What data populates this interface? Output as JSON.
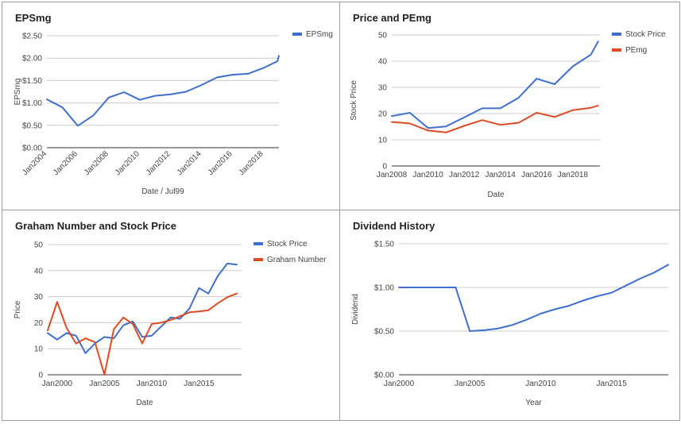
{
  "colors": {
    "blue": "#3f6fcd",
    "orange": "#dd4b25",
    "grid": "#cccccc",
    "axis": "#333333",
    "text": "#444444"
  },
  "chart_data": [
    {
      "type": "line",
      "title": "EPSmg",
      "xlabel": "Date / Jul99",
      "ylabel": "EPSmg",
      "x_ticks": [
        "Jan2004",
        "Jan2006",
        "Jan2008",
        "Jan2010",
        "Jan2012",
        "Jan2014",
        "Jan2016",
        "Jan2018"
      ],
      "x_range": [
        2004,
        2019
      ],
      "tick_labels_rotated": true,
      "y_ticks": [
        "$0.00",
        "$0.50",
        "$1.00",
        "$1.50",
        "$2.00",
        "$2.50"
      ],
      "ylim": [
        0,
        2.5
      ],
      "legend": "right",
      "series": [
        {
          "name": "EPSmg",
          "color": "blue",
          "points": [
            [
              2004,
              1.08
            ],
            [
              2005,
              0.9
            ],
            [
              2006,
              0.49
            ],
            [
              2007,
              0.72
            ],
            [
              2008,
              1.12
            ],
            [
              2009,
              1.24
            ],
            [
              2010,
              1.07
            ],
            [
              2011,
              1.16
            ],
            [
              2012,
              1.19
            ],
            [
              2013,
              1.25
            ],
            [
              2014,
              1.4
            ],
            [
              2015,
              1.57
            ],
            [
              2016,
              1.63
            ],
            [
              2017,
              1.65
            ],
            [
              2018,
              1.78
            ],
            [
              2018.9,
              1.93
            ],
            [
              2019,
              2.05
            ]
          ]
        }
      ]
    },
    {
      "type": "line",
      "title": "Price and PEmg",
      "xlabel": "Date",
      "ylabel": "Stock Price",
      "x_ticks": [
        "Jan2008",
        "Jan2010",
        "Jan2012",
        "Jan2014",
        "Jan2016",
        "Jan2018"
      ],
      "x_range": [
        2008,
        2019.5
      ],
      "y_ticks": [
        "0",
        "10",
        "20",
        "30",
        "40",
        "50"
      ],
      "ylim": [
        0,
        50
      ],
      "legend": "right",
      "series": [
        {
          "name": "Stock Price",
          "color": "blue",
          "points": [
            [
              2008,
              19
            ],
            [
              2009,
              20.3
            ],
            [
              2010,
              14.5
            ],
            [
              2011,
              15.1
            ],
            [
              2012,
              18.5
            ],
            [
              2013,
              22
            ],
            [
              2014,
              22
            ],
            [
              2015,
              26
            ],
            [
              2016,
              33.3
            ],
            [
              2017,
              31.2
            ],
            [
              2018,
              38
            ],
            [
              2019,
              42.5
            ],
            [
              2019.4,
              47.5
            ]
          ]
        },
        {
          "name": "PEmg",
          "color": "orange",
          "points": [
            [
              2008,
              16.8
            ],
            [
              2009,
              16.2
            ],
            [
              2010,
              13.5
            ],
            [
              2011,
              12.8
            ],
            [
              2012,
              15.3
            ],
            [
              2013,
              17.5
            ],
            [
              2014,
              15.7
            ],
            [
              2015,
              16.5
            ],
            [
              2016,
              20.3
            ],
            [
              2017,
              18.7
            ],
            [
              2018,
              21.3
            ],
            [
              2019,
              22.2
            ],
            [
              2019.4,
              23
            ]
          ]
        }
      ]
    },
    {
      "type": "line",
      "title": "Graham Number and Stock Price",
      "xlabel": "Date",
      "ylabel": "Price",
      "x_ticks": [
        "Jan2000",
        "Jan2005",
        "Jan2010",
        "Jan2015"
      ],
      "x_range": [
        1999,
        2019.5
      ],
      "y_ticks": [
        "0",
        "10",
        "20",
        "30",
        "40",
        "50"
      ],
      "ylim": [
        0,
        50
      ],
      "legend": "right",
      "series": [
        {
          "name": "Stock Price",
          "color": "blue",
          "points": [
            [
              1999,
              16
            ],
            [
              2000,
              13.5
            ],
            [
              2001,
              16
            ],
            [
              2002,
              15
            ],
            [
              2003,
              8.3
            ],
            [
              2004,
              12
            ],
            [
              2005,
              14.5
            ],
            [
              2006,
              14
            ],
            [
              2007,
              19
            ],
            [
              2008,
              20.5
            ],
            [
              2009,
              14.5
            ],
            [
              2010,
              15
            ],
            [
              2011,
              18.5
            ],
            [
              2012,
              22
            ],
            [
              2013,
              21.5
            ],
            [
              2014,
              25.5
            ],
            [
              2015,
              33.3
            ],
            [
              2016,
              31.2
            ],
            [
              2017,
              38
            ],
            [
              2018,
              42.7
            ],
            [
              2019,
              42.3
            ]
          ]
        },
        {
          "name": "Graham Number",
          "color": "orange",
          "points": [
            [
              1999,
              17
            ],
            [
              2000,
              28
            ],
            [
              2001,
              18
            ],
            [
              2002,
              12
            ],
            [
              2003,
              14
            ],
            [
              2004,
              12.5
            ],
            [
              2005,
              0
            ],
            [
              2006,
              17.5
            ],
            [
              2007,
              22
            ],
            [
              2008,
              19.5
            ],
            [
              2009,
              12
            ],
            [
              2010,
              19.5
            ],
            [
              2011,
              20
            ],
            [
              2012,
              21
            ],
            [
              2013,
              22.5
            ],
            [
              2014,
              24
            ],
            [
              2015,
              24.3
            ],
            [
              2016,
              24.8
            ],
            [
              2017,
              27.5
            ],
            [
              2018,
              29.8
            ],
            [
              2019,
              31.2
            ]
          ]
        }
      ]
    },
    {
      "type": "line",
      "title": "Dividend History",
      "xlabel": "Year",
      "ylabel": "Dividend",
      "x_ticks": [
        "Jan2000",
        "Jan2005",
        "Jan2010",
        "Jan2015"
      ],
      "x_range": [
        2000,
        2019
      ],
      "y_ticks": [
        "$0.00",
        "$0.50",
        "$1.00",
        "$1.50"
      ],
      "ylim": [
        0,
        1.5
      ],
      "legend": "none",
      "series": [
        {
          "name": "",
          "color": "blue",
          "points": [
            [
              2000,
              1.0
            ],
            [
              2001,
              1.0
            ],
            [
              2002,
              1.0
            ],
            [
              2003,
              1.0
            ],
            [
              2004,
              1.0
            ],
            [
              2005,
              0.5
            ],
            [
              2006,
              0.51
            ],
            [
              2007,
              0.53
            ],
            [
              2008,
              0.57
            ],
            [
              2009,
              0.63
            ],
            [
              2010,
              0.7
            ],
            [
              2011,
              0.75
            ],
            [
              2012,
              0.79
            ],
            [
              2013,
              0.85
            ],
            [
              2014,
              0.9
            ],
            [
              2015,
              0.94
            ],
            [
              2016,
              1.02
            ],
            [
              2017,
              1.1
            ],
            [
              2018,
              1.17
            ],
            [
              2019,
              1.26
            ]
          ]
        }
      ]
    }
  ]
}
